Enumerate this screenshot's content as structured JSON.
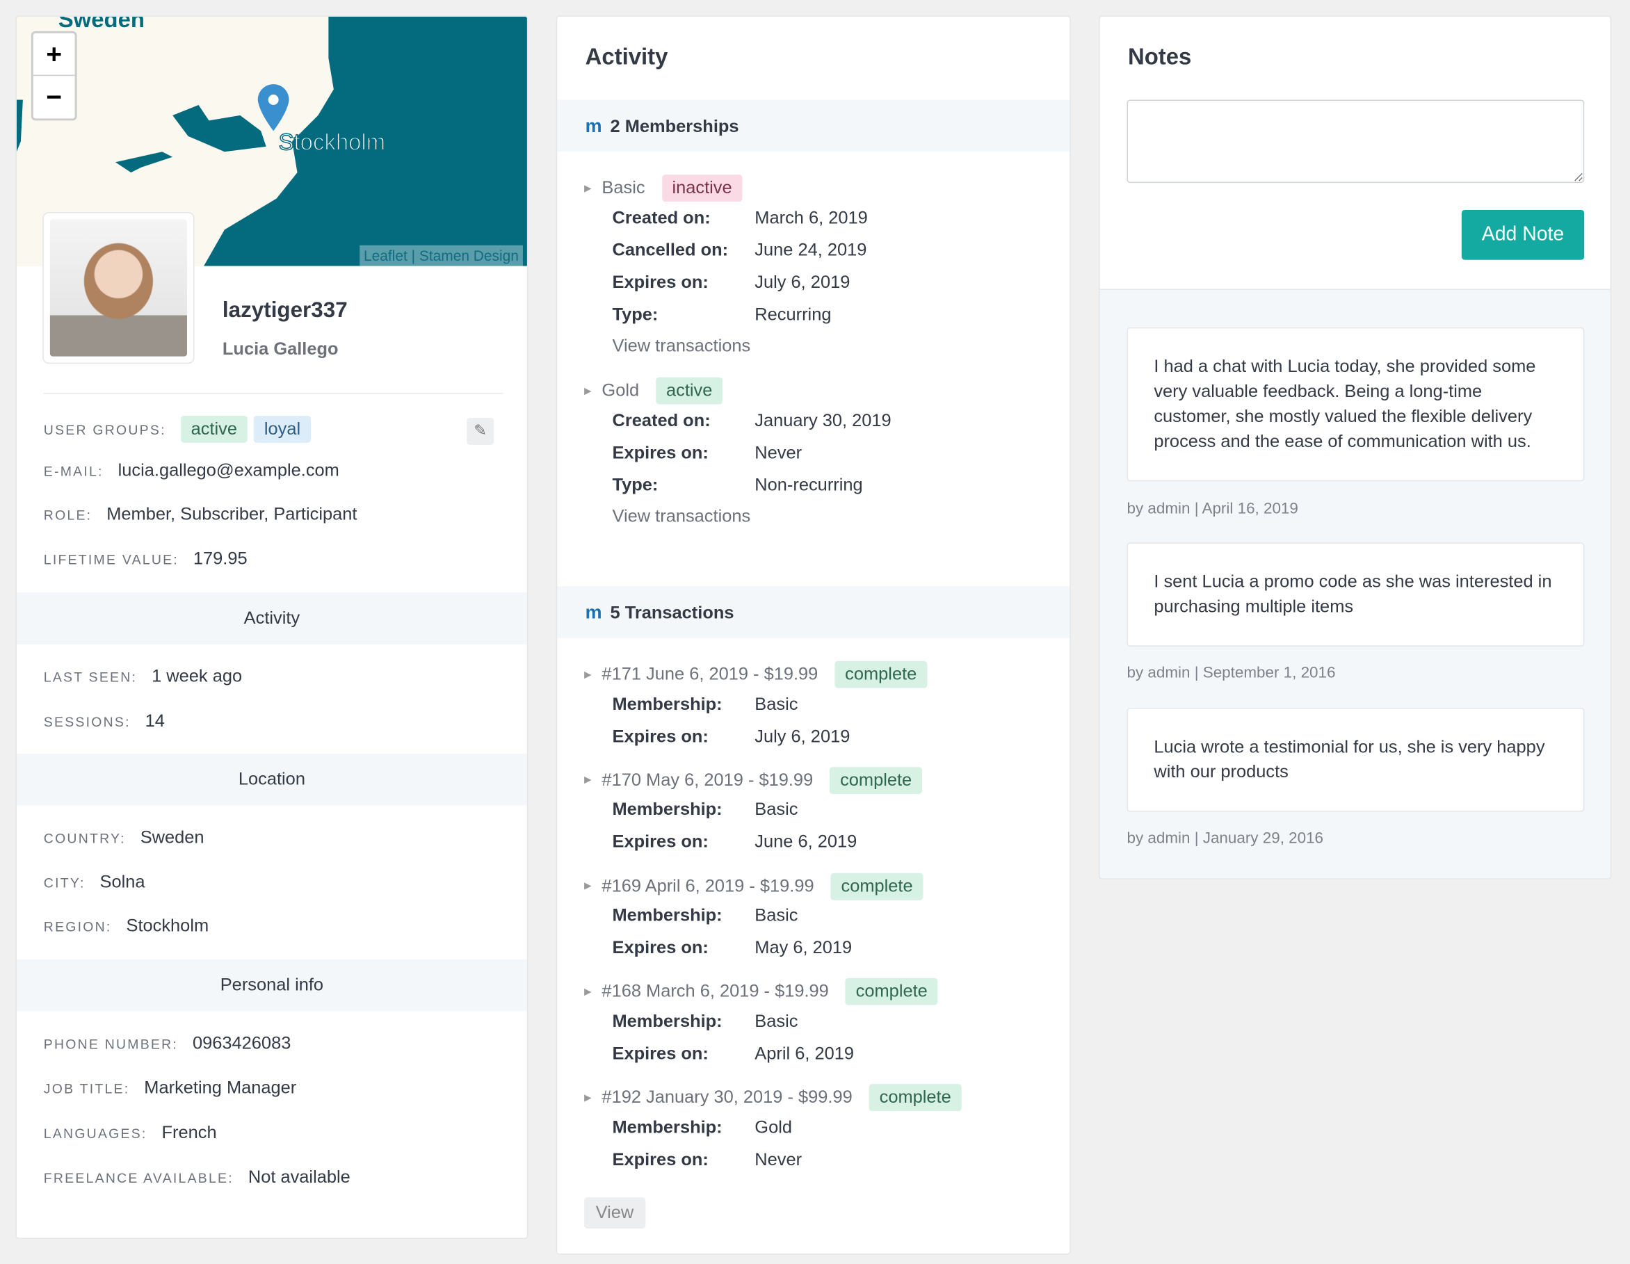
{
  "map": {
    "country_label": "Sweden",
    "city_label": "Stockholm",
    "zoom_in": "+",
    "zoom_out": "−",
    "attribution": "Leaflet | Stamen Design"
  },
  "profile": {
    "username": "lazytiger337",
    "full_name": "Lucia Gallego",
    "user_groups_label": "USER GROUPS:",
    "groups": [
      "active",
      "loyal"
    ],
    "email_label": "E-MAIL:",
    "email": "lucia.gallego@example.com",
    "role_label": "ROLE:",
    "role": "Member, Subscriber, Participant",
    "lifetime_label": "LIFETIME VALUE:",
    "lifetime": "179.95"
  },
  "activity": {
    "title": "Activity",
    "last_seen_label": "LAST SEEN:",
    "last_seen": "1 week ago",
    "sessions_label": "SESSIONS:",
    "sessions": "14"
  },
  "location": {
    "title": "Location",
    "country_label": "COUNTRY:",
    "country": "Sweden",
    "city_label": "CITY:",
    "city": "Solna",
    "region_label": "REGION:",
    "region": "Stockholm"
  },
  "personal": {
    "title": "Personal info",
    "phone_label": "PHONE NUMBER:",
    "phone": "0963426083",
    "job_label": "JOB TITLE:",
    "job": "Marketing Manager",
    "languages_label": "LANGUAGES:",
    "languages": "French",
    "freelance_label": "FREELANCE AVAILABLE:",
    "freelance": "Not available"
  },
  "middle": {
    "title": "Activity",
    "memberships_header": "2 Memberships",
    "transactions_header": "5 Transactions",
    "view_transactions": "View transactions",
    "view_button": "View",
    "memberships": [
      {
        "name": "Basic",
        "status": "inactive",
        "fields": [
          [
            "Created on:",
            "March 6, 2019"
          ],
          [
            "Cancelled on:",
            "June 24, 2019"
          ],
          [
            "Expires on:",
            "July 6, 2019"
          ],
          [
            "Type:",
            "Recurring"
          ]
        ]
      },
      {
        "name": "Gold",
        "status": "active",
        "fields": [
          [
            "Created on:",
            "January 30, 2019"
          ],
          [
            "Expires on:",
            "Never"
          ],
          [
            "Type:",
            "Non-recurring"
          ]
        ]
      }
    ],
    "transactions": [
      {
        "title": "#171 June 6, 2019 - $19.99",
        "status": "complete",
        "fields": [
          [
            "Membership:",
            "Basic"
          ],
          [
            "Expires on:",
            "July 6, 2019"
          ]
        ]
      },
      {
        "title": "#170 May 6, 2019 - $19.99",
        "status": "complete",
        "fields": [
          [
            "Membership:",
            "Basic"
          ],
          [
            "Expires on:",
            "June 6, 2019"
          ]
        ]
      },
      {
        "title": "#169 April 6, 2019 - $19.99",
        "status": "complete",
        "fields": [
          [
            "Membership:",
            "Basic"
          ],
          [
            "Expires on:",
            "May 6, 2019"
          ]
        ]
      },
      {
        "title": "#168 March 6, 2019 - $19.99",
        "status": "complete",
        "fields": [
          [
            "Membership:",
            "Basic"
          ],
          [
            "Expires on:",
            "April 6, 2019"
          ]
        ]
      },
      {
        "title": "#192 January 30, 2019 - $99.99",
        "status": "complete",
        "fields": [
          [
            "Membership:",
            "Gold"
          ],
          [
            "Expires on:",
            "Never"
          ]
        ]
      }
    ]
  },
  "notes": {
    "title": "Notes",
    "textarea_value": "",
    "add_button": "Add Note",
    "items": [
      {
        "text": "I had a chat with Lucia today, she provided some very valuable feedback. Being a long-time customer, she mostly valued the flexible delivery process and the ease of communication with us.",
        "meta": "by admin | April 16, 2019"
      },
      {
        "text": "I sent Lucia a promo code as she was interested in purchasing multiple items",
        "meta": "by admin | September 1, 2016"
      },
      {
        "text": "Lucia wrote a testimonial for us, she is very happy with our products",
        "meta": "by admin | January 29, 2016"
      }
    ]
  },
  "colors": {
    "accent": "#15aaa1",
    "sea": "#046b7f",
    "membership_icon": "#1b6fb3"
  }
}
